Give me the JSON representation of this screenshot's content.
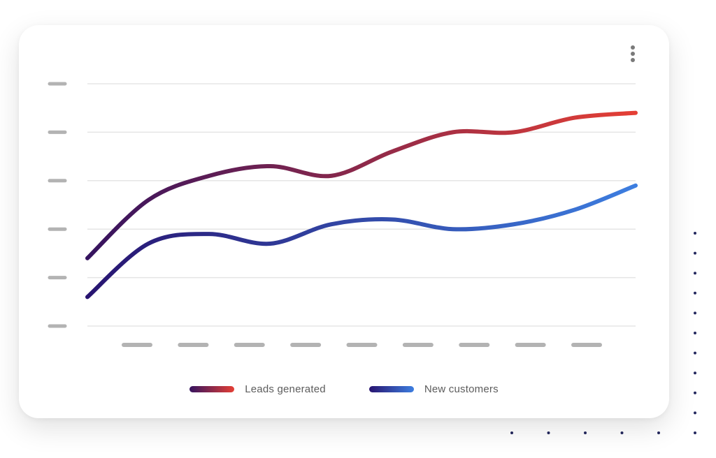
{
  "chart_data": {
    "type": "line",
    "title": "",
    "xlabel": "",
    "ylabel": "",
    "x": [
      0,
      1,
      2,
      3,
      4,
      5,
      6,
      7,
      8,
      9
    ],
    "ylim": [
      0,
      5
    ],
    "grid": true,
    "legend_placement": "bottom-center",
    "series": [
      {
        "name": "Leads generated",
        "values": [
          1.4,
          2.6,
          3.1,
          3.3,
          3.1,
          3.6,
          4.0,
          4.0,
          4.3,
          4.4
        ],
        "gradient": [
          "#35135f",
          "#e53f35"
        ]
      },
      {
        "name": "New customers",
        "values": [
          0.6,
          1.7,
          1.9,
          1.7,
          2.1,
          2.2,
          2.0,
          2.1,
          2.4,
          2.9
        ],
        "gradient": [
          "#281470",
          "#3d7ee0"
        ]
      }
    ]
  },
  "legend": {
    "leads_label": "Leads generated",
    "customers_label": "New customers"
  },
  "colors": {
    "grid": "#e5e5e5",
    "tick_placeholder": "#b3b3b3",
    "menu_icon": "#7a7a7a",
    "decor_dots": "#24285e"
  },
  "icons": {
    "menu": "more-vertical-icon"
  }
}
